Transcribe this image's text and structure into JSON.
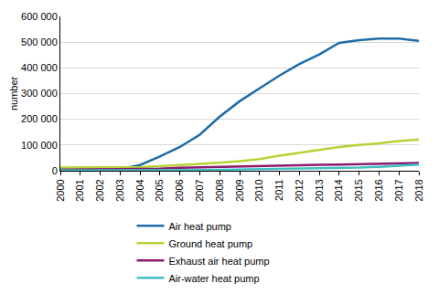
{
  "chart_data": {
    "type": "line",
    "y_label": "number",
    "categories": [
      "2000",
      "2001",
      "2002",
      "2003",
      "2004",
      "2005",
      "2006",
      "2007",
      "2008",
      "2009",
      "2010",
      "2011",
      "2012",
      "2013",
      "2014",
      "2015",
      "2016",
      "2017",
      "2018"
    ],
    "series": [
      {
        "name": "Air heat pump",
        "color": "#1f6ba5",
        "values": [
          5000,
          5000,
          5000,
          6000,
          22000,
          55000,
          92000,
          140000,
          210000,
          270000,
          320000,
          370000,
          415000,
          452000,
          497000,
          508000,
          514000,
          514000,
          505000
        ]
      },
      {
        "name": "Ground heat pump",
        "color": "#b5d334",
        "values": [
          12000,
          12000,
          12000,
          12000,
          14000,
          17000,
          21000,
          26000,
          31000,
          37000,
          45000,
          58000,
          70000,
          81000,
          92000,
          100000,
          106000,
          115000,
          121000
        ]
      },
      {
        "name": "Exhaust air heat pump",
        "color": "#8c1a6e",
        "values": [
          3000,
          3500,
          4000,
          4500,
          6000,
          8000,
          11000,
          13000,
          14000,
          16000,
          18000,
          19000,
          21000,
          23000,
          24000,
          25000,
          26000,
          28000,
          30000
        ]
      },
      {
        "name": "Air-water heat pump",
        "color": "#3ec0c3",
        "values": [
          500,
          500,
          600,
          700,
          800,
          1000,
          1500,
          2500,
          3500,
          4500,
          5500,
          6500,
          7500,
          9000,
          10000,
          12000,
          15000,
          20000,
          24000
        ]
      }
    ],
    "ylim": [
      0,
      600000
    ],
    "yticks": [
      0,
      {
        "value": 100000,
        "label": "100 000"
      },
      {
        "value": 200000,
        "label": "200 000"
      },
      {
        "value": 300000,
        "label": "300 000"
      },
      {
        "value": 400000,
        "label": "400 000"
      },
      {
        "value": 500000,
        "label": "500 000"
      },
      {
        "value": 600000,
        "label": "600 000"
      }
    ],
    "grid": true,
    "legend": "bottom"
  }
}
